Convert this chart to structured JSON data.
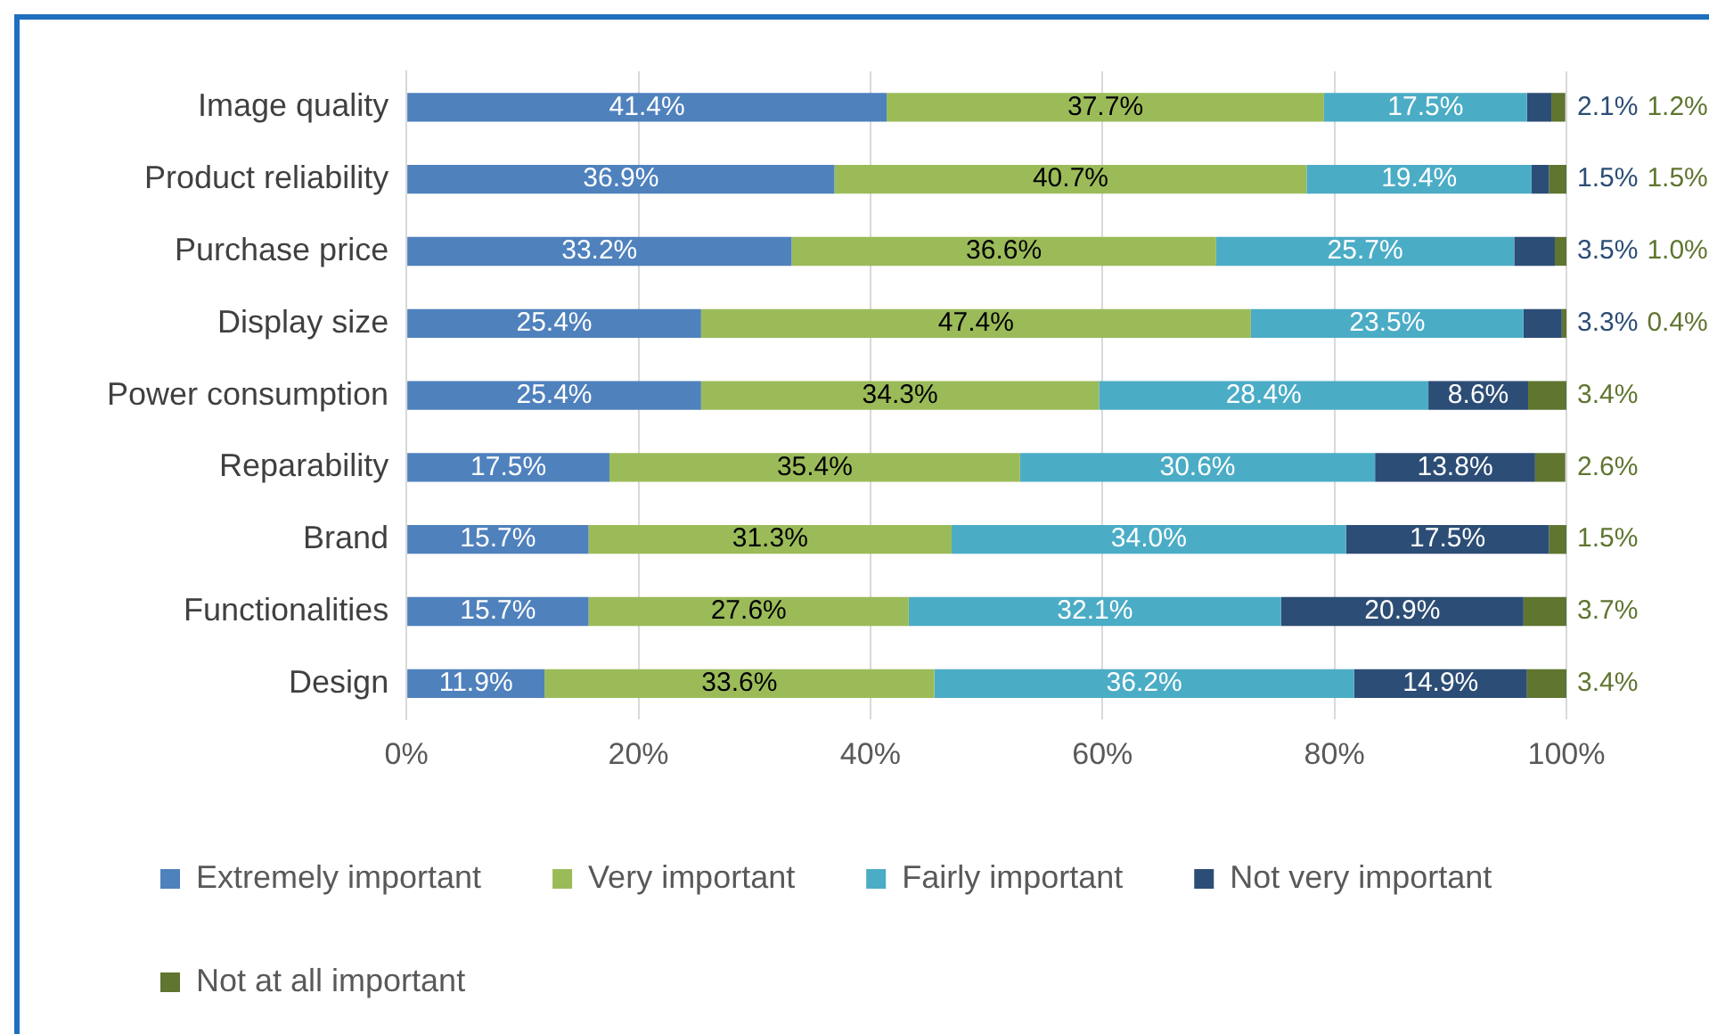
{
  "chart_data": {
    "type": "bar",
    "orientation": "horizontal",
    "stacked": true,
    "categories": [
      "Image quality",
      "Product reliability",
      "Purchase price",
      "Display size",
      "Power consumption",
      "Reparability",
      "Brand",
      "Functionalities",
      "Design"
    ],
    "series": [
      {
        "name": "Extremely important",
        "color": "#4f81bd",
        "values": [
          41.4,
          36.9,
          33.2,
          25.4,
          25.4,
          17.5,
          15.7,
          15.7,
          11.9
        ],
        "value_labels": [
          "41.4%",
          "36.9%",
          "33.2%",
          "25.4%",
          "25.4%",
          "17.5%",
          "15.7%",
          "15.7%",
          "11.9%"
        ]
      },
      {
        "name": "Very important",
        "color": "#9bbb59",
        "values": [
          37.7,
          40.7,
          36.6,
          47.4,
          34.3,
          35.4,
          31.3,
          27.6,
          33.6
        ],
        "value_labels": [
          "37.7%",
          "40.7%",
          "36.6%",
          "47.4%",
          "34.3%",
          "35.4%",
          "31.3%",
          "27.6%",
          "33.6%"
        ]
      },
      {
        "name": "Fairly important",
        "color": "#4bacc6",
        "values": [
          17.5,
          19.4,
          25.7,
          23.5,
          28.4,
          30.6,
          34.0,
          32.1,
          36.2
        ],
        "value_labels": [
          "17.5%",
          "19.4%",
          "25.7%",
          "23.5%",
          "28.4%",
          "30.6%",
          "34.0%",
          "32.1%",
          "36.2%"
        ]
      },
      {
        "name": "Not very important",
        "color": "#2c4d75",
        "values": [
          2.1,
          1.5,
          3.5,
          3.3,
          8.6,
          13.8,
          17.5,
          20.9,
          14.9
        ],
        "value_labels": [
          "2.1%",
          "1.5%",
          "3.5%",
          "3.3%",
          "8.6%",
          "13.8%",
          "17.5%",
          "20.9%",
          "14.9%"
        ]
      },
      {
        "name": "Not at all important",
        "color": "#5f7530",
        "values": [
          1.2,
          1.5,
          1.0,
          0.4,
          3.4,
          2.6,
          1.5,
          3.7,
          3.4
        ],
        "value_labels": [
          "1.2%",
          "1.5%",
          "1.0%",
          "0.4%",
          "3.4%",
          "2.6%",
          "1.5%",
          "3.7%",
          "3.4%"
        ]
      }
    ],
    "xlim": [
      0,
      100
    ],
    "xticks": [
      {
        "value": 0,
        "label": "0%"
      },
      {
        "value": 20,
        "label": "20%"
      },
      {
        "value": 40,
        "label": "40%"
      },
      {
        "value": 60,
        "label": "60%"
      },
      {
        "value": 80,
        "label": "80%"
      },
      {
        "value": 100,
        "label": "100%"
      }
    ],
    "grid": "x",
    "legend": "bottom"
  }
}
